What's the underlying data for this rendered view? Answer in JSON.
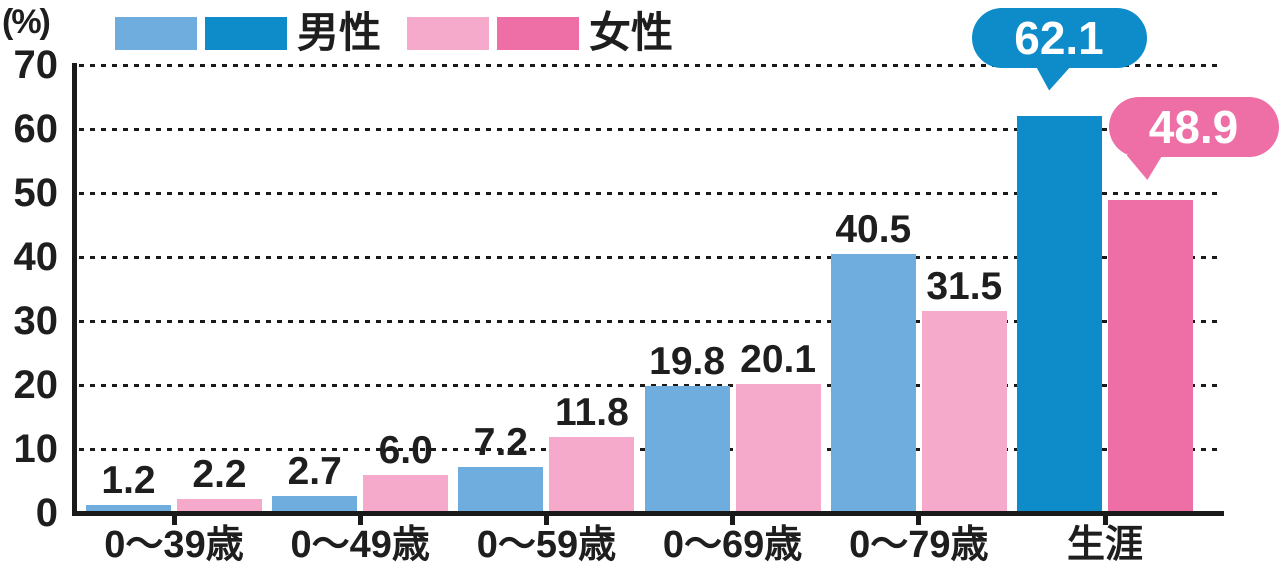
{
  "chart_data": {
    "type": "bar",
    "title": "",
    "ylabel": "(%)",
    "xlabel": "",
    "ylim": [
      0,
      70
    ],
    "yticks": [
      0,
      10,
      20,
      30,
      40,
      50,
      60,
      70
    ],
    "grid": "horizontal-dotted",
    "legend_position": "top",
    "categories": [
      "0〜39歳",
      "0〜49歳",
      "0〜59歳",
      "0〜69歳",
      "0〜79歳",
      "生涯"
    ],
    "highlight_category": "生涯",
    "series": [
      {
        "name": "男性",
        "color": "#6FADDE",
        "highlight_color": "#0E8CC9",
        "values": [
          1.2,
          2.7,
          7.2,
          19.8,
          40.5,
          62.1
        ],
        "labels": [
          "1.2",
          "2.7",
          "7.2",
          "19.8",
          "40.5",
          "62.1"
        ]
      },
      {
        "name": "女性",
        "color": "#F5AACB",
        "highlight_color": "#EE6EA6",
        "values": [
          2.2,
          6.0,
          11.8,
          20.1,
          31.5,
          48.9
        ],
        "labels": [
          "2.2",
          "6.0",
          "11.8",
          "20.1",
          "31.5",
          "48.9"
        ]
      }
    ],
    "callouts": [
      {
        "series": "男性",
        "category": "生涯",
        "label": "62.1",
        "color": "#0E8CC9",
        "text_color": "#FFFFFF"
      },
      {
        "series": "女性",
        "category": "生涯",
        "label": "48.9",
        "color": "#EE6EA6",
        "text_color": "#FFFFFF"
      }
    ]
  },
  "legend": {
    "items": [
      {
        "label": "男性",
        "swatches": [
          "#6FADDE",
          "#0E8CC9"
        ]
      },
      {
        "label": "女性",
        "swatches": [
          "#F5AACB",
          "#EE6EA6"
        ]
      }
    ]
  },
  "colors": {
    "text": "#1E1E1E",
    "axis": "#1A1A1A",
    "background": "#FFFFFF"
  }
}
